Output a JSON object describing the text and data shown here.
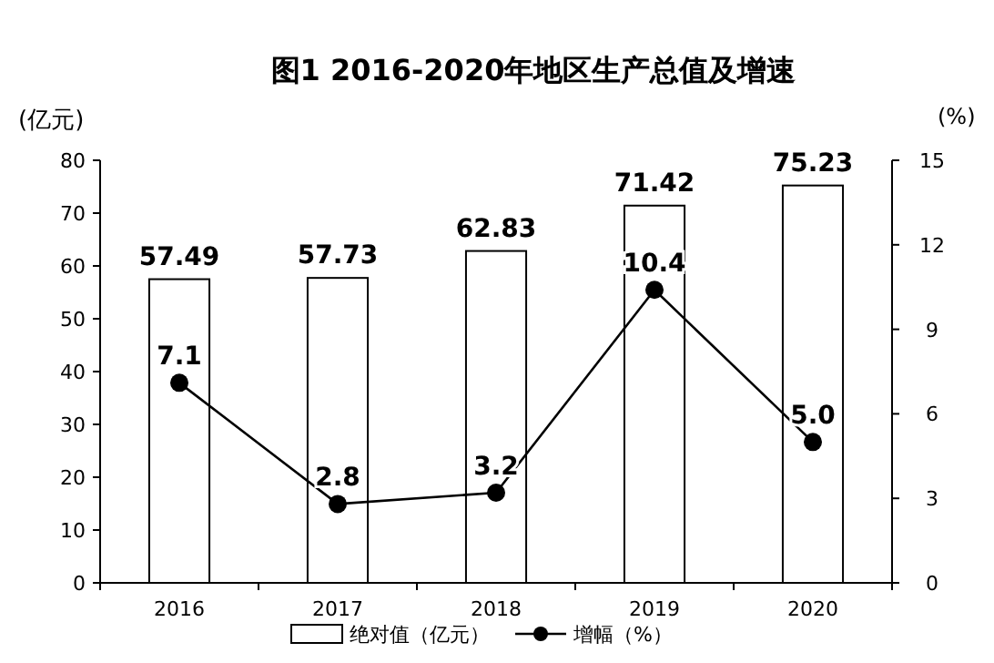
{
  "chart_data": {
    "type": "bar",
    "title": "图1 2016-2020年地区生产总值及增速",
    "ylabel": "(亿元)",
    "y2label": "(%)",
    "categories": [
      "2016",
      "2017",
      "2018",
      "2019",
      "2020"
    ],
    "series": [
      {
        "name": "绝对值（亿元）",
        "color": "#ffffff",
        "values": [
          57.49,
          57.73,
          62.83,
          71.42,
          75.23
        ],
        "value_labels": [
          "57.49",
          "57.73",
          "62.83",
          "71.42",
          "75.23"
        ]
      },
      {
        "name": "增幅（%）",
        "type": "line",
        "axis": "y2",
        "color": "#000000",
        "values": [
          7.1,
          2.8,
          3.2,
          10.4,
          5.0
        ],
        "value_labels": [
          "7.1",
          "2.8",
          "3.2",
          "10.4",
          "5.0"
        ]
      }
    ],
    "ylim": [
      0,
      80
    ],
    "yticks": [
      0,
      10,
      20,
      30,
      40,
      50,
      60,
      70,
      80
    ],
    "y2lim": [
      0,
      15
    ],
    "y2ticks": [
      0,
      3,
      6,
      9,
      12,
      15
    ],
    "legend": "bottom",
    "marker": "circle",
    "line_style": "solid",
    "grid": false
  }
}
